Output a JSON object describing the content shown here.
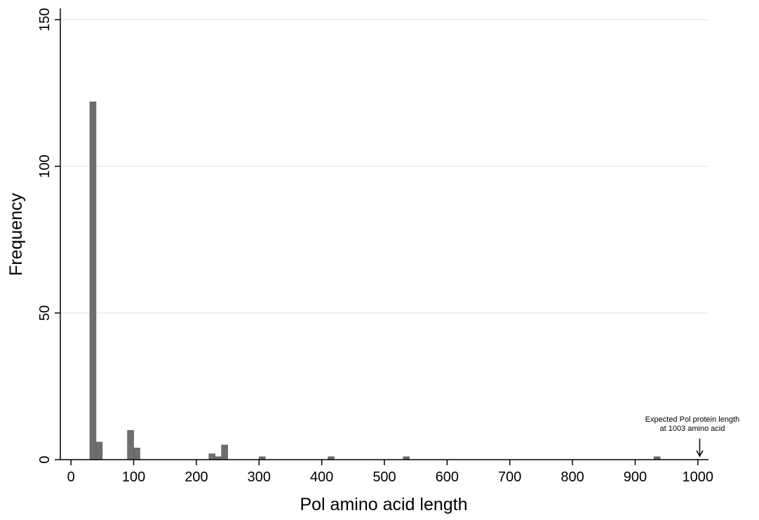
{
  "chart_data": {
    "type": "bar",
    "title": "",
    "xlabel": "Pol amino acid length",
    "ylabel": "Frequency",
    "xlim": [
      -17,
      1017
    ],
    "ylim": [
      0,
      150
    ],
    "x_ticks": [
      0,
      100,
      200,
      300,
      400,
      500,
      600,
      700,
      800,
      900,
      1000
    ],
    "y_ticks": [
      0,
      50,
      100,
      150
    ],
    "grid": true,
    "bar_color": "#6e6e6e",
    "series": [
      {
        "bins": [
          {
            "start": 30,
            "end": 40,
            "value": 122
          },
          {
            "start": 40,
            "end": 50,
            "value": 6
          },
          {
            "start": 90,
            "end": 100,
            "value": 10
          },
          {
            "start": 100,
            "end": 110,
            "value": 4
          },
          {
            "start": 220,
            "end": 230,
            "value": 2
          },
          {
            "start": 230,
            "end": 240,
            "value": 1
          },
          {
            "start": 240,
            "end": 250,
            "value": 5
          },
          {
            "start": 300,
            "end": 310,
            "value": 1
          },
          {
            "start": 410,
            "end": 420,
            "value": 1
          },
          {
            "start": 530,
            "end": 540,
            "value": 1
          },
          {
            "start": 930,
            "end": 940,
            "value": 1
          }
        ]
      }
    ],
    "annotation": {
      "lines": [
        "Expected Pol protein length",
        "at 1003 amino acid"
      ],
      "arrow_x": 1003
    }
  }
}
